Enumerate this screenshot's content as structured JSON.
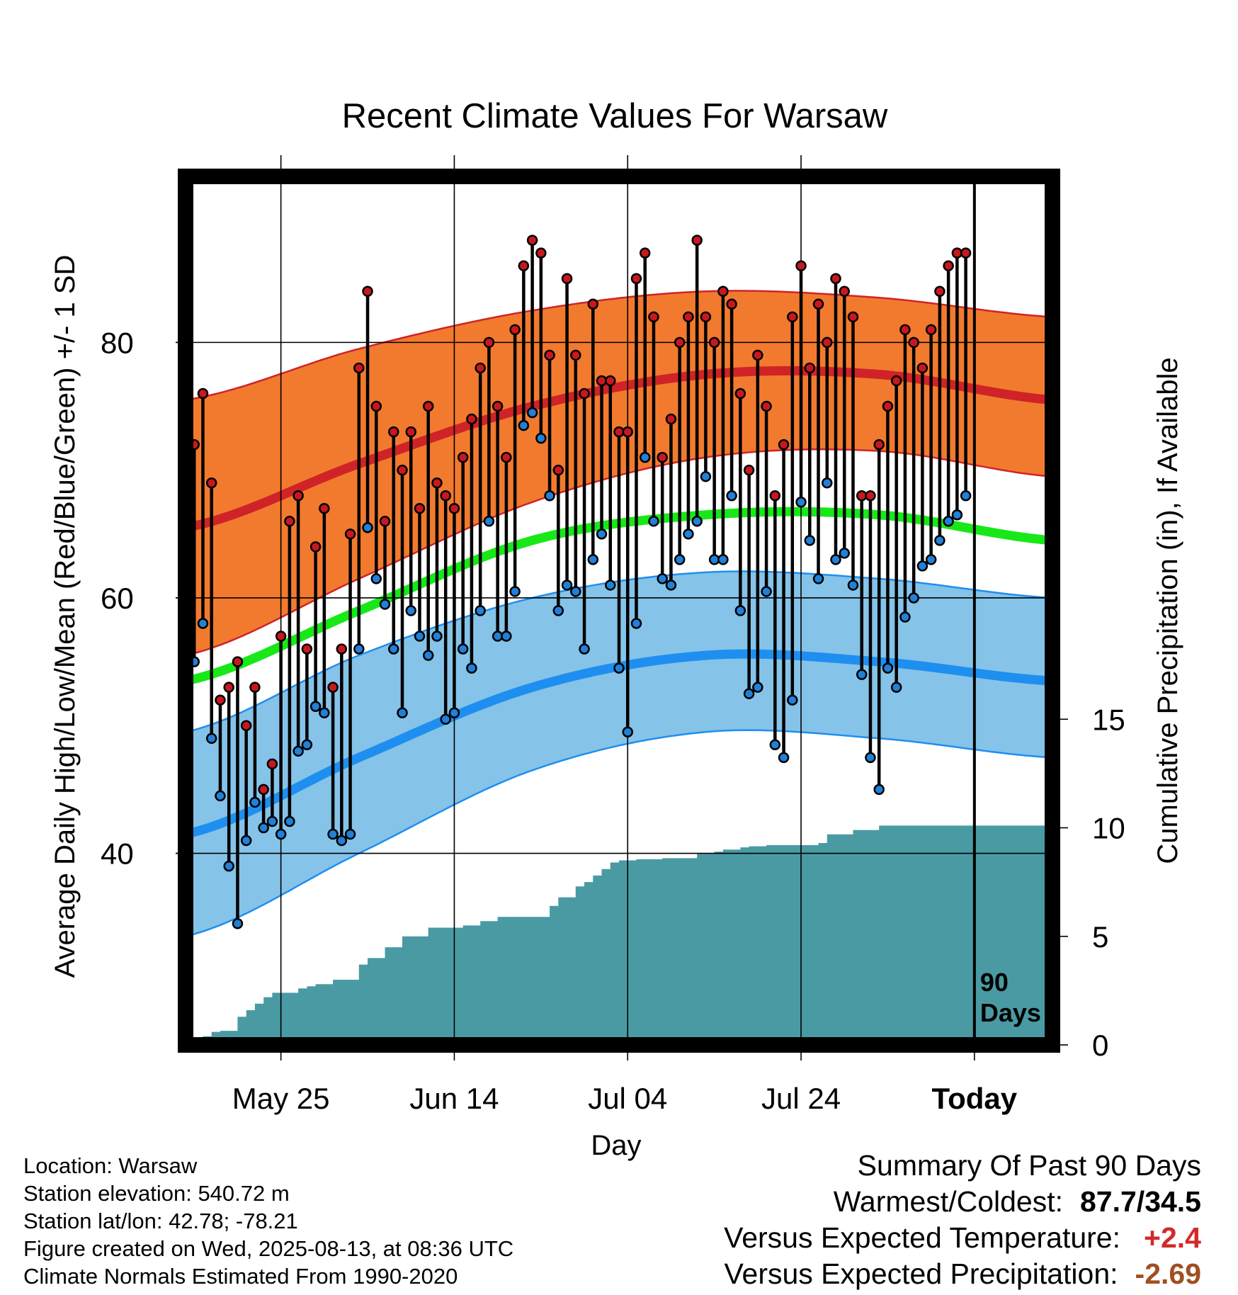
{
  "chart_data": {
    "type": "line",
    "title": "Recent Climate Values For Warsaw",
    "xlabel": "Day",
    "ylabel": "Average Daily High/Low/Mean (Red/Blue/Green) +/- 1 SD",
    "y2label": "Cumulative Precipitation (in), If Available",
    "x_ticks": [
      "May 25",
      "Jun 14",
      "Jul 04",
      "Jul 24",
      "Today"
    ],
    "x_tick_dates": [
      "2025-05-25",
      "2025-06-14",
      "2025-07-04",
      "2025-07-24",
      "2025-08-13"
    ],
    "xlim": [
      "2025-05-14",
      "2025-08-22"
    ],
    "ylim": [
      25,
      93
    ],
    "y_ticks": [
      40,
      60,
      80
    ],
    "y2lim": [
      0,
      40
    ],
    "y2_ticks": [
      0,
      5,
      10,
      15
    ],
    "today_date": "2025-08-13",
    "today_label": [
      "90",
      "Days"
    ],
    "grid": true,
    "start_date": "2025-05-15",
    "normals": {
      "dates": [
        "2025-05-14",
        "2025-06-03",
        "2025-06-23",
        "2025-07-13",
        "2025-08-02",
        "2025-08-22"
      ],
      "high_mean": [
        65.5,
        70.5,
        75.0,
        77.5,
        77.5,
        75.5
      ],
      "high_sd_upper": [
        75.5,
        79.5,
        82.5,
        84.0,
        83.5,
        82.0
      ],
      "high_sd_lower": [
        55.5,
        61.5,
        67.5,
        71.0,
        71.5,
        69.5
      ],
      "mean": [
        53.5,
        59.0,
        64.5,
        66.5,
        66.5,
        64.5
      ],
      "low_mean": [
        41.5,
        47.5,
        53.0,
        55.5,
        55.0,
        53.5
      ],
      "low_sd_upper": [
        49.5,
        55.5,
        60.0,
        62.0,
        61.5,
        60.0
      ],
      "low_sd_lower": [
        33.5,
        40.0,
        46.5,
        49.5,
        49.0,
        47.5
      ]
    },
    "series": [
      {
        "name": "High",
        "values": [
          72,
          76,
          69,
          52,
          53,
          55,
          50,
          53,
          45,
          47,
          57,
          66,
          68,
          56,
          64,
          67,
          53,
          56,
          65,
          78,
          84,
          75,
          66,
          73,
          70,
          73,
          67,
          75,
          69,
          68,
          67,
          71,
          74,
          78,
          80,
          75,
          71,
          81,
          86,
          88,
          87,
          79,
          70,
          85,
          79,
          76,
          83,
          77,
          77,
          73,
          73,
          85,
          87,
          82,
          71,
          74,
          80,
          82,
          88,
          82,
          80,
          84,
          83,
          76,
          70,
          79,
          75,
          68,
          72,
          82,
          86,
          78,
          83,
          80,
          85,
          84,
          82,
          68,
          68,
          72,
          75,
          77,
          81,
          80,
          78,
          81,
          84,
          86,
          87,
          87
        ]
      },
      {
        "name": "Low",
        "values": [
          55,
          58,
          49,
          44.5,
          39,
          34.5,
          41,
          44,
          42,
          42.5,
          41.5,
          42.5,
          48,
          48.5,
          51.5,
          51,
          41.5,
          41,
          41.5,
          56,
          65.5,
          61.5,
          59.5,
          56,
          51,
          59,
          57,
          55.5,
          57,
          50.5,
          51,
          56,
          54.5,
          59,
          66,
          57,
          57,
          60.5,
          73.5,
          74.5,
          72.5,
          68,
          59,
          61,
          60.5,
          56,
          63,
          65,
          61,
          54.5,
          49.5,
          58,
          71,
          66,
          61.5,
          61,
          63,
          65,
          66,
          69.5,
          63,
          63,
          68,
          59,
          52.5,
          53,
          60.5,
          48.5,
          47.5,
          52,
          67.5,
          64.5,
          61.5,
          69,
          63,
          63.5,
          61,
          54,
          47.5,
          45,
          54.5,
          53,
          58.5,
          60,
          62.5,
          63,
          64.5,
          66,
          66.5,
          68
        ]
      }
    ],
    "precip": {
      "dates": [
        "2025-05-15",
        "2025-05-16",
        "2025-05-17",
        "2025-05-18",
        "2025-05-20",
        "2025-05-21",
        "2025-05-22",
        "2025-05-23",
        "2025-05-24",
        "2025-05-27",
        "2025-05-28",
        "2025-05-29",
        "2025-05-31",
        "2025-06-03",
        "2025-06-04",
        "2025-06-06",
        "2025-06-08",
        "2025-06-11",
        "2025-06-15",
        "2025-06-17",
        "2025-06-19",
        "2025-06-25",
        "2025-06-26",
        "2025-06-28",
        "2025-06-29",
        "2025-06-30",
        "2025-07-01",
        "2025-07-02",
        "2025-07-03",
        "2025-07-05",
        "2025-07-08",
        "2025-07-12",
        "2025-07-14",
        "2025-07-15",
        "2025-07-17",
        "2025-07-18",
        "2025-07-20",
        "2025-07-26",
        "2025-07-27",
        "2025-07-30",
        "2025-08-02",
        "2025-08-13"
      ],
      "values": [
        0.2,
        0.4,
        0.6,
        0.65,
        1.3,
        1.6,
        1.9,
        2.2,
        2.4,
        2.6,
        2.7,
        2.8,
        3.0,
        3.7,
        4.0,
        4.5,
        5.0,
        5.4,
        5.5,
        5.7,
        5.9,
        6.4,
        6.8,
        7.3,
        7.5,
        7.8,
        8.1,
        8.4,
        8.5,
        8.55,
        8.6,
        8.8,
        8.9,
        9.0,
        9.1,
        9.15,
        9.2,
        9.3,
        9.7,
        9.9,
        10.1,
        10.1
      ]
    }
  },
  "info": {
    "location": "Location: Warsaw",
    "elevation": "Station elevation: 540.72 m",
    "latlon": "Station lat/lon: 42.78; -78.21",
    "created": "Figure created on Wed, 2025-08-13, at 08:36 UTC",
    "normals_note": "Climate Normals Estimated From 1990-2020"
  },
  "summary": {
    "title": "Summary Of Past 90 Days",
    "warm_cold_label": "Warmest/Coldest:",
    "warm_cold_value": "87.7/34.5",
    "temp_label": "Versus Expected Temperature:",
    "temp_value": "+2.4",
    "precip_label": "Versus Expected Precipitation:",
    "precip_value": "-2.69"
  },
  "colors": {
    "high_band": "#f27a2e",
    "high_line": "#cf2328",
    "high_dot": "#c8181e",
    "low_band": "#86c3e8",
    "low_line": "#1e8ff0",
    "low_dot": "#2180d8",
    "mean_line": "#18e818",
    "precip_fill": "#4a9aa4",
    "temp_positive": "#d22a2a",
    "precip_negative": "#a04f22"
  }
}
